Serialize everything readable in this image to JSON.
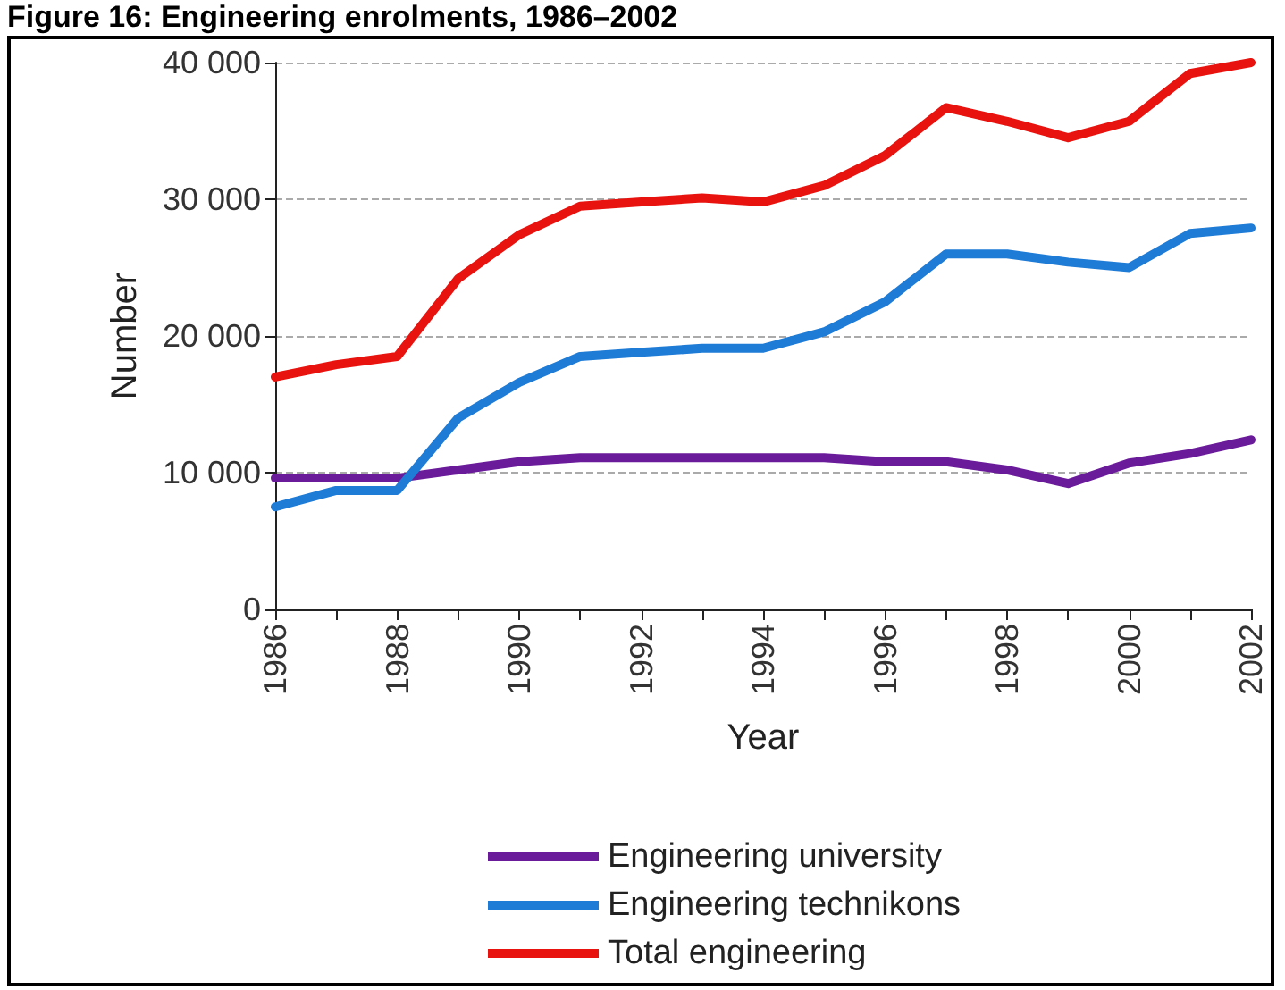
{
  "chart_data": {
    "type": "line",
    "title": "Figure 16: Engineering enrolments, 1986–2002",
    "xlabel": "Year",
    "ylabel": "Number",
    "x": [
      1986,
      1987,
      1988,
      1989,
      1990,
      1991,
      1992,
      1993,
      1994,
      1995,
      1996,
      1997,
      1998,
      1999,
      2000,
      2001,
      2002
    ],
    "series": [
      {
        "name": "Engineering university",
        "color": "#6a1b9a",
        "values": [
          9600,
          9600,
          9600,
          10200,
          10800,
          11100,
          11100,
          11100,
          11100,
          11100,
          10800,
          10800,
          10200,
          9200,
          10700,
          11400,
          12400
        ]
      },
      {
        "name": "Engineering technikons",
        "color": "#1e7bd6",
        "values": [
          7500,
          8700,
          8700,
          14000,
          16600,
          18500,
          18800,
          19100,
          19100,
          20300,
          22500,
          26000,
          26000,
          25400,
          25000,
          27500,
          27900
        ]
      },
      {
        "name": "Total engineering",
        "color": "#e8130f",
        "values": [
          17000,
          17900,
          18500,
          24200,
          27400,
          29500,
          29800,
          30100,
          29800,
          31000,
          33200,
          36700,
          35700,
          34500,
          35700,
          39200,
          40000
        ]
      }
    ],
    "xlim": [
      1986,
      2002
    ],
    "xticks": [
      1986,
      {
        "value": 1987,
        "label": null
      },
      1988,
      {
        "value": 1989,
        "label": null
      },
      1990,
      {
        "value": 1991,
        "label": null
      },
      1992,
      {
        "value": 1993,
        "label": null
      },
      1994,
      {
        "value": 1995,
        "label": null
      },
      1996,
      {
        "value": 1997,
        "label": null
      },
      1998,
      {
        "value": 1999,
        "label": null
      },
      2000,
      {
        "value": 2001,
        "label": null
      },
      2002
    ],
    "ylim": [
      0,
      40000
    ],
    "yticks": [
      0,
      {
        "value": 10000,
        "label": "10 000"
      },
      {
        "value": 20000,
        "label": "20 000"
      },
      {
        "value": 30000,
        "label": "30 000"
      },
      {
        "value": 40000,
        "label": "40 000"
      }
    ],
    "grid": "y",
    "legend": "bottom",
    "marker": "none",
    "line_style": "solid"
  }
}
